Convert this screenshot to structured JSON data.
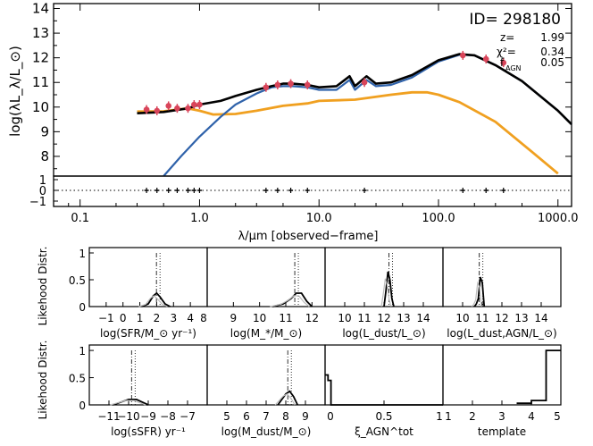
{
  "sed": {
    "id_label": "ID= 298180",
    "z_label": "z=",
    "z_value": "1.99",
    "chi2_label": "χ²=",
    "chi2_value": "0.34",
    "fagn_label": "f",
    "fagn_sub": "AGN",
    "fagn_value": "0.05",
    "ylabel": "log(λL_λ/L_⊙)",
    "xlabel": "λ/μm [observed−frame]",
    "yticks": [
      "14",
      "13",
      "12",
      "11",
      "10",
      "9",
      "8"
    ],
    "xticks": [
      "0.1",
      "1.0",
      "10.0",
      "100.0",
      "1000.0"
    ],
    "resid_yticks": [
      "1",
      "0",
      "−1"
    ]
  },
  "lik": {
    "ylabel_top": "Likehood Distr.",
    "ylabel_bottom": "Likehood Distr.",
    "panels": [
      {
        "xlabel": "log(SFR/M_⊙ yr⁻¹)",
        "ticks": [
          "−1",
          "0",
          "1",
          "2",
          "3",
          "4",
          "8"
        ]
      },
      {
        "xlabel": "log(M_*/M_⊙)",
        "ticks": [
          "9",
          "10",
          "11",
          "12"
        ]
      },
      {
        "xlabel": "log(L_dust/L_⊙)",
        "ticks": [
          "10",
          "11",
          "12",
          "13",
          "14"
        ]
      },
      {
        "xlabel": "log(L_dust,AGN/L_⊙)",
        "ticks": [
          "10",
          "11",
          "12",
          "13",
          "14"
        ]
      },
      {
        "xlabel": "log(sSFR) yr⁻¹",
        "ticks": [
          "−11",
          "−10",
          "−9",
          "−8",
          "−7"
        ]
      },
      {
        "xlabel": "log(M_dust/M_⊙)",
        "ticks": [
          "5",
          "6",
          "7",
          "8",
          "9"
        ]
      },
      {
        "xlabel": "ξ_AGN^tot",
        "ticks": [
          "0",
          "0.5",
          "1"
        ]
      },
      {
        "xlabel": "template",
        "ticks": [
          "1",
          "2",
          "3",
          "4",
          "5"
        ]
      }
    ],
    "yticks": [
      "1",
      "0.5",
      "0"
    ]
  },
  "colors": {
    "black": "#000000",
    "blue": "#2f62aa",
    "orange": "#f0a020",
    "grey": "#bdbdbd",
    "red": "#d9455a"
  },
  "chart_data": [
    {
      "type": "line",
      "title": "ID= 298180",
      "xlabel": "λ/μm [observed−frame]",
      "ylabel": "log(λL_λ/L_⊙)",
      "x_scale": "log",
      "xlim": [
        0.06,
        1300
      ],
      "ylim": [
        7.2,
        14.2
      ],
      "annotations": [
        "z= 1.99",
        "χ²= 0.34",
        "f_AGN= 0.05"
      ],
      "photometry": {
        "x": [
          0.36,
          0.44,
          0.55,
          0.65,
          0.8,
          0.9,
          1.0,
          3.6,
          4.5,
          5.8,
          8.0,
          24,
          160,
          250,
          350
        ],
        "y": [
          9.9,
          9.85,
          10.05,
          9.95,
          9.95,
          10.1,
          10.1,
          10.8,
          10.9,
          10.95,
          10.9,
          11.0,
          12.1,
          11.95,
          11.8
        ]
      },
      "series": [
        {
          "color": "black",
          "x": [
            0.3,
            0.5,
            0.8,
            1.0,
            1.5,
            2,
            3,
            4,
            5,
            6,
            8,
            10,
            14,
            18,
            20,
            25,
            30,
            40,
            60,
            100,
            150,
            200,
            300,
            500,
            1000,
            1300
          ],
          "y": [
            9.75,
            9.8,
            9.95,
            10.1,
            10.25,
            10.45,
            10.7,
            10.85,
            10.95,
            10.95,
            10.9,
            10.8,
            10.85,
            11.25,
            10.85,
            11.25,
            10.95,
            11.0,
            11.3,
            11.9,
            12.15,
            12.1,
            11.7,
            11.05,
            9.85,
            9.3
          ]
        },
        {
          "color": "blue",
          "x": [
            0.5,
            0.7,
            1.0,
            1.5,
            2,
            3,
            4,
            5,
            6,
            8,
            10,
            14,
            18,
            20,
            25,
            30,
            40,
            60,
            100,
            150,
            200,
            300,
            500,
            1000,
            1300
          ],
          "y": [
            7.2,
            8.0,
            8.8,
            9.6,
            10.1,
            10.55,
            10.8,
            10.85,
            10.85,
            10.8,
            10.7,
            10.7,
            11.1,
            10.7,
            11.1,
            10.85,
            10.9,
            11.2,
            11.85,
            12.12,
            12.1,
            11.7,
            11.05,
            9.85,
            9.3
          ]
        },
        {
          "color": "orange",
          "x": [
            0.3,
            0.5,
            0.8,
            1.0,
            1.3,
            2,
            3,
            5,
            8,
            10,
            20,
            40,
            60,
            80,
            100,
            150,
            300,
            600,
            1000
          ],
          "y": [
            9.82,
            9.83,
            9.95,
            9.85,
            9.7,
            9.72,
            9.85,
            10.05,
            10.15,
            10.25,
            10.3,
            10.5,
            10.6,
            10.6,
            10.5,
            10.2,
            9.4,
            8.2,
            7.3
          ]
        }
      ]
    },
    {
      "type": "line",
      "xlabel": "log(SFR/M_⊙ yr⁻¹)",
      "xlim": [
        -2,
        5
      ],
      "ylim": [
        0,
        1.1
      ],
      "x": [
        1.1,
        1.5,
        1.8,
        2.0,
        2.2,
        2.5,
        2.8
      ],
      "y": [
        0,
        0.05,
        0.2,
        0.25,
        0.18,
        0.05,
        0
      ]
    },
    {
      "type": "line",
      "xlabel": "log(M_*/M_⊙)",
      "xlim": [
        8,
        12.5
      ],
      "ylim": [
        0,
        1.1
      ],
      "x": [
        10.5,
        10.9,
        11.2,
        11.4,
        11.6,
        11.8,
        12.0
      ],
      "y": [
        0,
        0.05,
        0.15,
        0.25,
        0.25,
        0.1,
        0
      ]
    },
    {
      "type": "line",
      "xlabel": "log(L_dust/L_⊙)",
      "xlim": [
        9,
        15
      ],
      "ylim": [
        0,
        1.1
      ],
      "x": [
        12.0,
        12.1,
        12.2,
        12.3,
        12.4,
        12.5
      ],
      "y": [
        0,
        0.3,
        0.65,
        0.5,
        0.15,
        0
      ]
    },
    {
      "type": "line",
      "xlabel": "log(L_dust,AGN/L_⊙)",
      "xlim": [
        9,
        15
      ],
      "ylim": [
        0,
        1.1
      ],
      "x": [
        10.6,
        10.7,
        10.8,
        10.9,
        11.0,
        11.1
      ],
      "y": [
        0,
        0.05,
        0.15,
        0.55,
        0.45,
        0
      ]
    },
    {
      "type": "line",
      "xlabel": "log(sSFR) yr⁻¹",
      "xlim": [
        -12,
        -6
      ],
      "ylim": [
        0,
        1.1
      ],
      "x": [
        -10.8,
        -10.4,
        -10.0,
        -9.6,
        -9.3,
        -9.0
      ],
      "y": [
        0,
        0.05,
        0.1,
        0.1,
        0.05,
        0
      ]
    },
    {
      "type": "line",
      "xlabel": "log(M_dust/M_⊙)",
      "xlim": [
        4,
        10
      ],
      "ylim": [
        0,
        1.1
      ],
      "x": [
        7.6,
        7.8,
        8.0,
        8.2,
        8.4,
        8.6
      ],
      "y": [
        0,
        0.1,
        0.2,
        0.25,
        0.15,
        0
      ]
    },
    {
      "type": "bar",
      "xlabel": "ξ_AGN^tot",
      "xlim": [
        0,
        1
      ],
      "ylim": [
        0,
        1.1
      ],
      "x": [
        0.0,
        0.025,
        0.05
      ],
      "y": [
        0.55,
        0.45,
        0
      ]
    },
    {
      "type": "bar",
      "xlabel": "template",
      "xlim": [
        1,
        5
      ],
      "ylim": [
        0,
        1.1
      ],
      "x": [
        3.5,
        4.0,
        4.5
      ],
      "y": [
        0.03,
        0.08,
        1.0
      ]
    }
  ]
}
